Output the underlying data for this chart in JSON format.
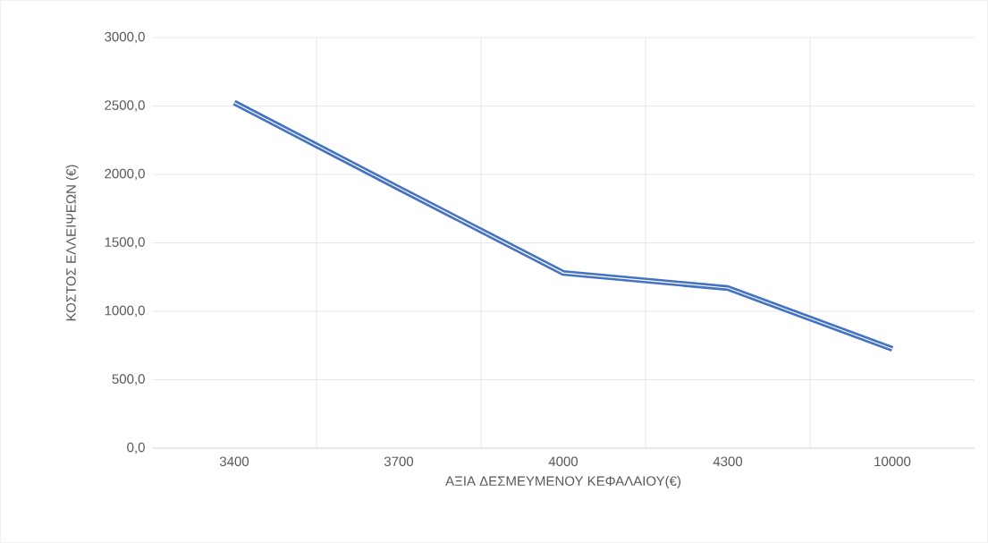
{
  "chart_data": {
    "type": "line",
    "xlabel": "ΑΞΙΑ ΔΕΣΜΕΥΜΕΝΟΥ ΚΕΦΑΛΑΙΟΥ(€)",
    "ylabel": "ΚΟΣΤΟΣ ΕΛΛΕΙΨΕΩΝ (€)",
    "categories": [
      "3400",
      "3700",
      "4000",
      "4300",
      "10000"
    ],
    "series": [
      {
        "color": "#4472c4",
        "values": [
          2525,
          1900,
          1280,
          1170,
          725
        ]
      }
    ],
    "ylim": [
      0,
      3000
    ],
    "yticks": [
      {
        "value": 0,
        "label": "0,0"
      },
      {
        "value": 500,
        "label": "500,0"
      },
      {
        "value": 1000,
        "label": "1000,0"
      },
      {
        "value": 1500,
        "label": "1500,0"
      },
      {
        "value": 2000,
        "label": "2000,0"
      },
      {
        "value": 2500,
        "label": "2500,0"
      },
      {
        "value": 3000,
        "label": "3000,0"
      }
    ],
    "grid": true,
    "marker": "none",
    "line_style": "solid"
  }
}
